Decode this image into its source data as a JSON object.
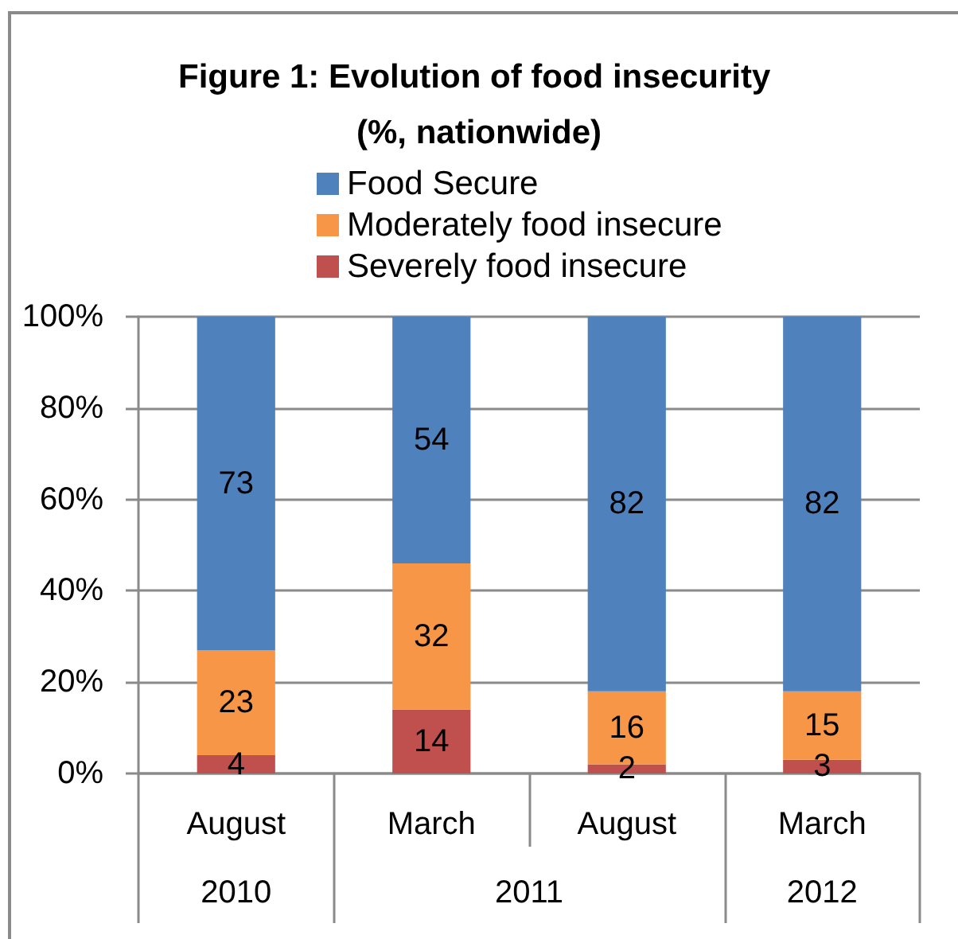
{
  "chart_data": {
    "type": "bar",
    "title": "Figure 1: Evolution of food insecurity (%, nationwide)",
    "categories": [
      "August",
      "March",
      "August",
      "March"
    ],
    "series": [
      {
        "name": "Severely food insecure",
        "color": "#c0504d",
        "values": [
          4,
          14,
          2,
          3
        ]
      },
      {
        "name": "Moderately food insecure",
        "color": "#f79646",
        "values": [
          23,
          32,
          16,
          15
        ]
      },
      {
        "name": "Food Secure",
        "color": "#4f81bd",
        "values": [
          73,
          54,
          82,
          82
        ]
      }
    ],
    "stacked": true,
    "ylim": [
      0,
      100
    ],
    "yticks": [
      {
        "value": 0,
        "label": "0%"
      },
      {
        "value": 20,
        "label": "20%"
      },
      {
        "value": 40,
        "label": "40%"
      },
      {
        "value": 60,
        "label": "60%"
      },
      {
        "value": 80,
        "label": "80%"
      },
      {
        "value": 100,
        "label": "100%"
      }
    ],
    "grid": "y",
    "legend": "top",
    "data_labels": true,
    "annotations": [
      "2010",
      "2011",
      "2012"
    ]
  }
}
